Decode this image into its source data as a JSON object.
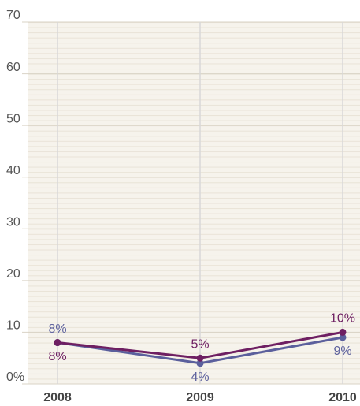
{
  "chart_data": {
    "type": "line",
    "categories": [
      "2008",
      "2009",
      "2010"
    ],
    "series": [
      {
        "color": "#6e1f62",
        "values": [
          8,
          5,
          10
        ],
        "value_labels": [
          "8%",
          "5%",
          "10%"
        ]
      },
      {
        "color": "#5b5f9c",
        "values": [
          8,
          4,
          9
        ],
        "value_labels": [
          "8%",
          "4%",
          "9%"
        ]
      }
    ],
    "ylim": [
      0,
      70
    ],
    "yticks": [
      {
        "value": 0,
        "label": "0%"
      },
      10,
      20,
      30,
      40,
      50,
      60,
      70
    ],
    "grid": true
  }
}
